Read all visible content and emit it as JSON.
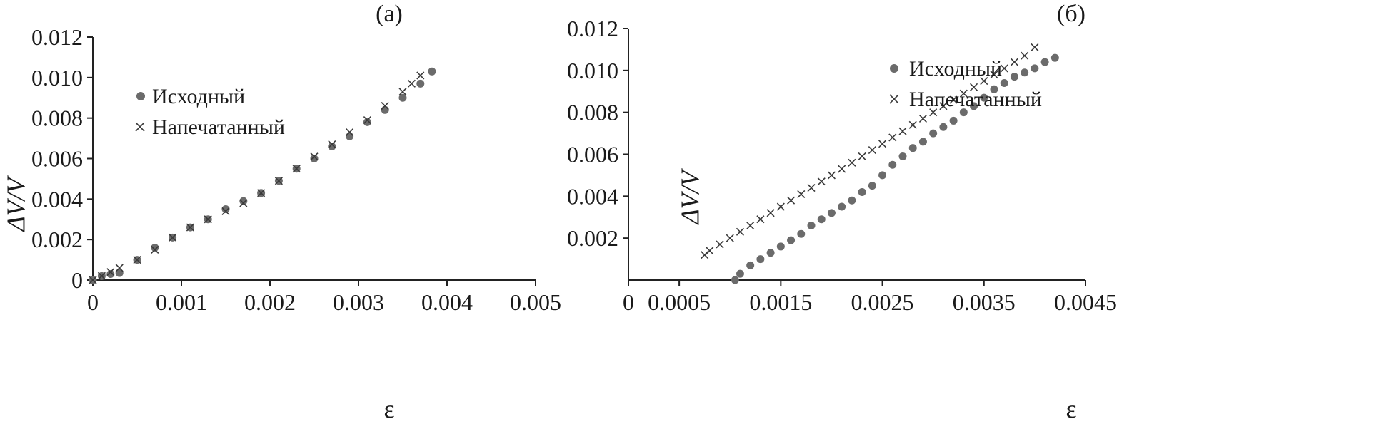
{
  "chart_data": [
    {
      "panel_label": "(a)",
      "type": "scatter",
      "xlabel": "ε",
      "ylabel": "ΔV/V",
      "xlim": [
        0,
        0.005
      ],
      "ylim": [
        0,
        0.012
      ],
      "x_ticks": [
        0,
        0.001,
        0.002,
        0.003,
        0.004,
        0.005
      ],
      "x_tick_labels": [
        "0",
        "0.001",
        "0.002",
        "0.003",
        "0.004",
        "0.005"
      ],
      "y_ticks": [
        0,
        0.002,
        0.004,
        0.006,
        0.008,
        0.01,
        0.012
      ],
      "y_tick_labels": [
        "0",
        "0.002",
        "0.004",
        "0.006",
        "0.008",
        "0.010",
        "0.012"
      ],
      "legend_placement": "top-left",
      "grid": false,
      "series": [
        {
          "name": "Исходный",
          "marker": "circle",
          "color": "#6b6b6b",
          "x": [
            0.0,
            0.0001,
            0.0002,
            0.0003,
            0.0005,
            0.0007,
            0.0009,
            0.0011,
            0.0013,
            0.0015,
            0.0017,
            0.0019,
            0.0021,
            0.0023,
            0.0025,
            0.0027,
            0.0029,
            0.0031,
            0.0033,
            0.0035,
            0.0037,
            0.00383
          ],
          "y": [
            0.0,
            0.0002,
            0.0003,
            0.00035,
            0.001,
            0.0016,
            0.0021,
            0.0026,
            0.003,
            0.0035,
            0.0039,
            0.0043,
            0.0049,
            0.0055,
            0.006,
            0.0066,
            0.0071,
            0.0078,
            0.0084,
            0.009,
            0.0097,
            0.0103
          ]
        },
        {
          "name": "Напечатанный",
          "marker": "cross",
          "color": "#3a3a3a",
          "x": [
            0.0,
            0.0001,
            0.0002,
            0.0003,
            0.0005,
            0.0007,
            0.0009,
            0.0011,
            0.0013,
            0.0015,
            0.0017,
            0.0019,
            0.0021,
            0.0023,
            0.0025,
            0.0027,
            0.0029,
            0.0031,
            0.0033,
            0.0035,
            0.0036,
            0.0037
          ],
          "y": [
            0.0,
            0.0002,
            0.0004,
            0.0006,
            0.001,
            0.0015,
            0.0021,
            0.0026,
            0.003,
            0.0034,
            0.0038,
            0.0043,
            0.0049,
            0.0055,
            0.0061,
            0.0067,
            0.0073,
            0.0079,
            0.0086,
            0.0093,
            0.0097,
            0.0101
          ]
        }
      ]
    },
    {
      "panel_label": "(б)",
      "type": "scatter",
      "xlabel": "ε",
      "ylabel": "ΔV/V",
      "xlim": [
        0,
        0.0045
      ],
      "ylim": [
        0,
        0.012
      ],
      "x_ticks": [
        0,
        0.0005,
        0.0015,
        0.0025,
        0.0035,
        0.0045
      ],
      "x_tick_labels": [
        "0",
        "0.0005",
        "0.0015",
        "0.0025",
        "0.0035",
        "0.0045"
      ],
      "y_ticks": [
        0.002,
        0.004,
        0.006,
        0.008,
        0.01,
        0.012
      ],
      "y_tick_labels": [
        "0.002",
        "0.004",
        "0.006",
        "0.008",
        "0.010",
        "0.012"
      ],
      "legend_placement": "top-left",
      "grid": false,
      "series": [
        {
          "name": "Исходный",
          "marker": "circle",
          "color": "#6b6b6b",
          "x": [
            0.00105,
            0.0011,
            0.0012,
            0.0013,
            0.0014,
            0.0015,
            0.0016,
            0.0017,
            0.0018,
            0.0019,
            0.002,
            0.0021,
            0.0022,
            0.0023,
            0.0024,
            0.0025,
            0.0026,
            0.0027,
            0.0028,
            0.0029,
            0.003,
            0.0031,
            0.0032,
            0.0033,
            0.0034,
            0.0035,
            0.0036,
            0.0037,
            0.0038,
            0.0039,
            0.004,
            0.0041,
            0.0042
          ],
          "y": [
            0.0,
            0.0003,
            0.0007,
            0.001,
            0.0013,
            0.0016,
            0.0019,
            0.0022,
            0.0026,
            0.0029,
            0.0032,
            0.0035,
            0.0038,
            0.0042,
            0.0045,
            0.005,
            0.0055,
            0.0059,
            0.0063,
            0.0066,
            0.007,
            0.0073,
            0.0076,
            0.008,
            0.0083,
            0.0087,
            0.0091,
            0.0094,
            0.0097,
            0.0099,
            0.0101,
            0.0104,
            0.0106
          ]
        },
        {
          "name": "Напечатанный",
          "marker": "cross",
          "color": "#3a3a3a",
          "x": [
            0.00075,
            0.0008,
            0.0009,
            0.001,
            0.0011,
            0.0012,
            0.0013,
            0.0014,
            0.0015,
            0.0016,
            0.0017,
            0.0018,
            0.0019,
            0.002,
            0.0021,
            0.0022,
            0.0023,
            0.0024,
            0.0025,
            0.0026,
            0.0027,
            0.0028,
            0.0029,
            0.003,
            0.0031,
            0.0032,
            0.0033,
            0.0034,
            0.0035,
            0.0036,
            0.0037,
            0.0038,
            0.0039,
            0.004
          ],
          "y": [
            0.0012,
            0.0014,
            0.0017,
            0.002,
            0.0023,
            0.0026,
            0.0029,
            0.0032,
            0.0035,
            0.0038,
            0.0041,
            0.0044,
            0.0047,
            0.005,
            0.0053,
            0.0056,
            0.0059,
            0.0062,
            0.0065,
            0.0068,
            0.0071,
            0.0074,
            0.0077,
            0.008,
            0.0083,
            0.0086,
            0.0089,
            0.0092,
            0.0095,
            0.0098,
            0.0101,
            0.0104,
            0.0107,
            0.0111
          ]
        }
      ]
    }
  ]
}
